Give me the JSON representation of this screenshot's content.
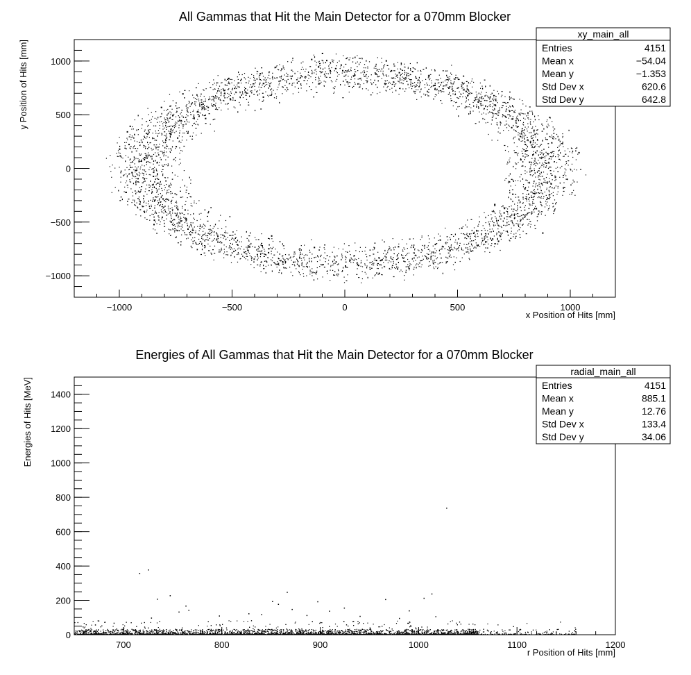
{
  "chart_data": [
    {
      "type": "scatter",
      "title": "All Gammas that Hit the Main Detector for a 070mm Blocker",
      "xlabel": "x Position of Hits [mm]",
      "ylabel": "y Position of Hits [mm]",
      "xlim": [
        -1200,
        1200
      ],
      "ylim": [
        -1200,
        1200
      ],
      "xticks": [
        "−1000",
        "−500",
        "0",
        "500",
        "1000"
      ],
      "xtick_values": [
        -1000,
        -500,
        0,
        500,
        1000
      ],
      "yticks": [
        "−1000",
        "−500",
        "0",
        "500",
        "1000"
      ],
      "ytick_values": [
        -1000,
        -500,
        0,
        500,
        1000
      ],
      "distribution": {
        "shape": "elliptical annulus",
        "center_x": 0,
        "center_y": 0,
        "inner_rx": 660,
        "inner_ry": 640,
        "outer_rx": 1050,
        "outer_ry": 1060,
        "n_points": 4151
      },
      "stats": {
        "name": "xy_main_all",
        "rows": [
          {
            "label": "Entries",
            "value": "4151"
          },
          {
            "label": "Mean x",
            "value": "−54.04"
          },
          {
            "label": "Mean y",
            "value": "−1.353"
          },
          {
            "label": "Std Dev x",
            "value": "620.6"
          },
          {
            "label": "Std Dev y",
            "value": "642.8"
          }
        ]
      }
    },
    {
      "type": "scatter",
      "title": "Energies of All Gammas that Hit the Main Detector for a 070mm Blocker",
      "xlabel": "r Position of Hits [mm]",
      "ylabel": "Energies of Hits [MeV]",
      "xlim": [
        650,
        1200
      ],
      "ylim": [
        0,
        1500
      ],
      "xticks": [
        "700",
        "800",
        "900",
        "1000",
        "1100",
        "1200"
      ],
      "xtick_values": [
        700,
        800,
        900,
        1000,
        1100,
        1200
      ],
      "yticks": [
        "0",
        "200",
        "400",
        "600",
        "800",
        "1000",
        "1200",
        "1400"
      ],
      "ytick_values": [
        0,
        200,
        400,
        600,
        800,
        1000,
        1200,
        1400
      ],
      "distribution": {
        "shape": "dense band near zero energy with sparse outliers",
        "r_range": [
          650,
          1160
        ],
        "typical_energy_max": 30,
        "n_points": 4151
      },
      "outliers": [
        {
          "x": 1028,
          "y": 740
        },
        {
          "x": 725,
          "y": 380
        },
        {
          "x": 716,
          "y": 360
        },
        {
          "x": 866,
          "y": 250
        },
        {
          "x": 1013,
          "y": 240
        },
        {
          "x": 747,
          "y": 230
        },
        {
          "x": 1005,
          "y": 215
        },
        {
          "x": 734,
          "y": 210
        },
        {
          "x": 966,
          "y": 208
        },
        {
          "x": 851,
          "y": 196
        },
        {
          "x": 897,
          "y": 195
        },
        {
          "x": 857,
          "y": 180
        },
        {
          "x": 763,
          "y": 170
        },
        {
          "x": 924,
          "y": 158
        },
        {
          "x": 871,
          "y": 150
        },
        {
          "x": 766,
          "y": 145
        },
        {
          "x": 909,
          "y": 140
        },
        {
          "x": 756,
          "y": 135
        },
        {
          "x": 990,
          "y": 142
        },
        {
          "x": 827,
          "y": 125
        },
        {
          "x": 840,
          "y": 120
        },
        {
          "x": 886,
          "y": 115
        },
        {
          "x": 797,
          "y": 112
        },
        {
          "x": 940,
          "y": 110
        },
        {
          "x": 1017,
          "y": 108
        },
        {
          "x": 728,
          "y": 100
        },
        {
          "x": 980,
          "y": 98
        },
        {
          "x": 671,
          "y": 60
        },
        {
          "x": 690,
          "y": 70
        }
      ],
      "stats": {
        "name": "radial_main_all",
        "rows": [
          {
            "label": "Entries",
            "value": "4151"
          },
          {
            "label": "Mean x",
            "value": "885.1"
          },
          {
            "label": "Mean y",
            "value": "12.76"
          },
          {
            "label": "Std Dev x",
            "value": "133.4"
          },
          {
            "label": "Std Dev y",
            "value": "34.06"
          }
        ]
      }
    }
  ]
}
